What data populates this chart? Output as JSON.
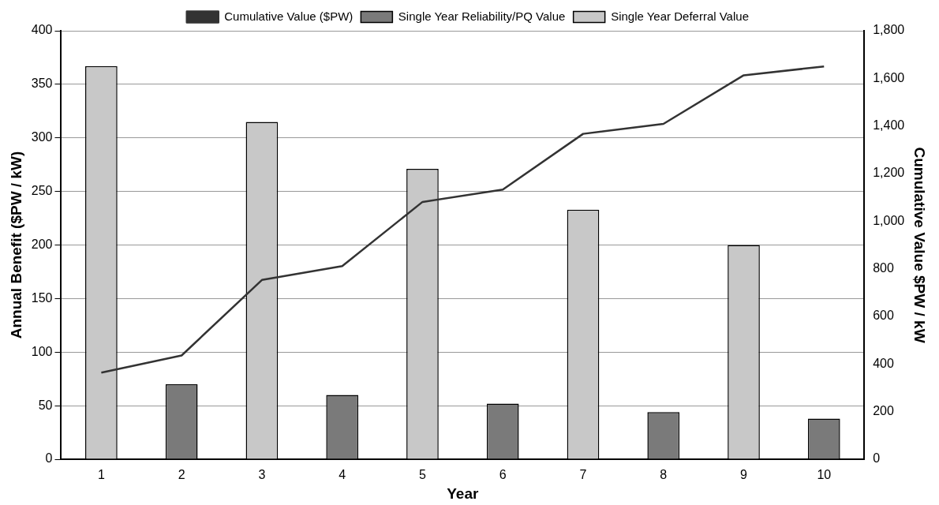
{
  "chart_data": {
    "type": "bar",
    "xlabel": "Year",
    "ylabel": "Annual Benefit ($PW / kW)",
    "y2label": "Cumulative Value $PW / kW",
    "categories": [
      "1",
      "2",
      "3",
      "4",
      "5",
      "6",
      "7",
      "8",
      "9",
      "10"
    ],
    "series": [
      {
        "name": "Single Year Reliability/PQ Value",
        "color": "#7a7a7a",
        "values": [
          null,
          70,
          null,
          60,
          null,
          52,
          null,
          44,
          null,
          38
        ]
      },
      {
        "name": "Single Year Deferral Value",
        "color": "#c8c8c8",
        "values": [
          367,
          null,
          315,
          null,
          271,
          null,
          233,
          null,
          200,
          null
        ]
      },
      {
        "name": "Cumulative Value ($PW)",
        "type": "line",
        "axis": "y2",
        "color": "#333333",
        "values": [
          364,
          436,
          753,
          811,
          1081,
          1133,
          1367,
          1409,
          1613,
          1650
        ]
      }
    ],
    "ylim": [
      0,
      400
    ],
    "yticks": [
      0,
      50,
      100,
      150,
      200,
      250,
      300,
      350,
      400
    ],
    "y2lim": [
      0,
      1800
    ],
    "y2ticks": [
      0,
      {
        "value": 200,
        "label": "200"
      },
      {
        "value": 400,
        "label": "400"
      },
      {
        "value": 600,
        "label": "600"
      },
      {
        "value": 800,
        "label": "800"
      },
      {
        "value": 1000,
        "label": "1,000"
      },
      {
        "value": 1200,
        "label": "1,200"
      },
      {
        "value": 1400,
        "label": "1,400"
      },
      {
        "value": 1600,
        "label": "1,600"
      },
      {
        "value": 1800,
        "label": "1,800"
      }
    ],
    "grid": "y",
    "legend": "top",
    "marker": "none",
    "line_style": "solid"
  }
}
